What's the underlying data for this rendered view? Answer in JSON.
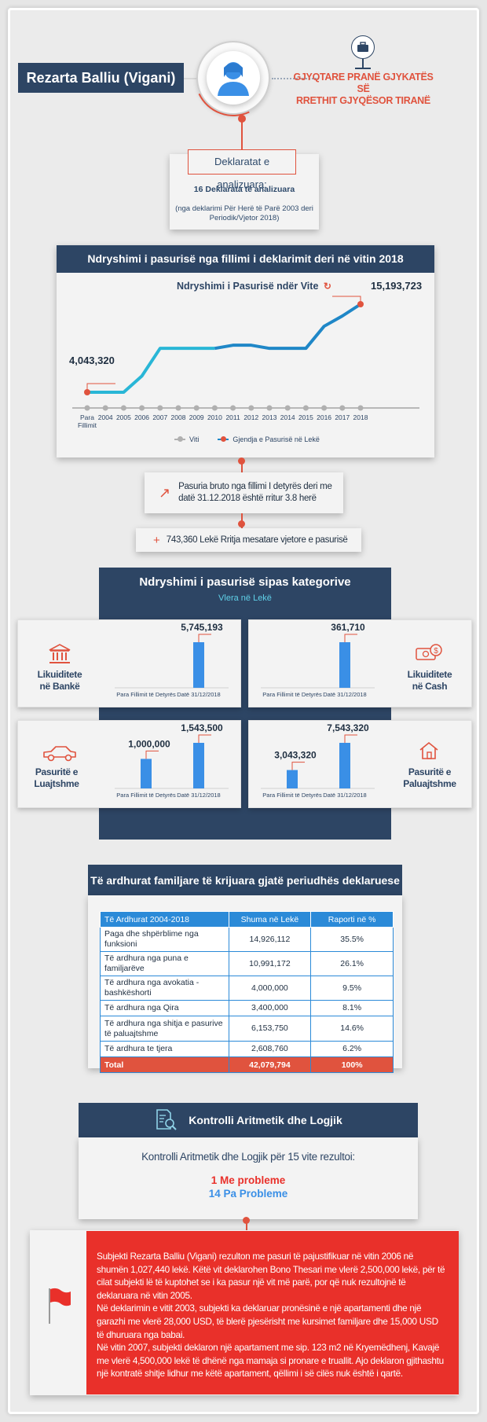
{
  "header": {
    "name": "Rezarta Balliu (Vigani)",
    "role_line1": "GJYQTARE PRANË GJYKATËS SË",
    "role_line2": "RRETHIT GJYQËSOR TIRANË"
  },
  "declarations": {
    "title": "Deklaratat e analizuara:",
    "count": "16 Deklarata të analizuara",
    "note_line1": "(nga deklarimi Për Herë të Parë 2003 deri",
    "note_line2": "Periodik/Vjetor 2018)"
  },
  "wealth_change": {
    "section_title": "Ndryshimi i pasurisë nga fillimi i deklarimit deri në vitin 2018",
    "chart_title": "Ndryshimi i Pasurisë ndër Vite",
    "start_label": "4,043,320",
    "end_label": "15,193,723"
  },
  "chart_data": [
    {
      "type": "line",
      "title": "Ndryshimi i Pasurisë ndër Vite",
      "categories": [
        "Para Fillimit",
        "2004",
        "2005",
        "2006",
        "2007",
        "2008",
        "2009",
        "2010",
        "2011",
        "2012",
        "2013",
        "2014",
        "2015",
        "2016",
        "2017",
        "2018"
      ],
      "series": [
        {
          "name": "Gjendja e Pasurisë në Lekë",
          "values": [
            4043320,
            4043320,
            4043320,
            6100000,
            9600000,
            9600000,
            9600000,
            9600000,
            10000000,
            10000000,
            9600000,
            9600000,
            9600000,
            12400000,
            13700000,
            15193723
          ]
        }
      ],
      "legend": [
        "Viti",
        "Gjendja e Pasurisë në Lekë"
      ],
      "legend_position": "bottom",
      "ylim": [
        0,
        16000000
      ]
    },
    {
      "type": "bar",
      "title": "Likuiditete në Bankë",
      "categories": [
        "Para Fillimit të Detyrës",
        "Datë 31/12/2018"
      ],
      "values": [
        0,
        5745193
      ]
    },
    {
      "type": "bar",
      "title": "Likuiditete në Cash",
      "categories": [
        "Para Fillimit të Detyrës",
        "Datë 31/12/2018"
      ],
      "values": [
        0,
        361710
      ]
    },
    {
      "type": "bar",
      "title": "Pasuritë e Luajtshme",
      "categories": [
        "Para Fillimit të Detyrës",
        "Datë 31/12/2018"
      ],
      "values": [
        1000000,
        1543500
      ]
    },
    {
      "type": "bar",
      "title": "Pasuritë e Paluajtshme",
      "categories": [
        "Para Fillimit të Detyrës",
        "Datë 31/12/2018"
      ],
      "values": [
        3043320,
        7543320
      ]
    }
  ],
  "legend": {
    "viti": "Viti",
    "gjendja": "Gjendja e Pasurisë në Lekë"
  },
  "growth": {
    "line1": "Pasuria bruto nga fillimi I detyrës deri me",
    "line2": "datë 31.12.2018 është rritur 3.8 herë",
    "avg": "743,360 Lekë Rritja mesatare vjetore e pasurisë",
    "plus": "+"
  },
  "categories": {
    "title": "Ndryshimi i pasurisë sipas kategorive",
    "subtitle": "Vlera në Lekë",
    "x_label_before": "Para Fillimit të Detyrës",
    "x_label_after": "Datë 31/12/2018",
    "bank": {
      "line1": "Likuiditete",
      "line2": "në Bankë",
      "before": "",
      "after": "5,745,193"
    },
    "cash": {
      "line1": "Likuiditete",
      "line2": "në Cash",
      "before": "",
      "after": "361,710"
    },
    "movable": {
      "line1": "Pasuritë e",
      "line2": "Luajtshme",
      "before": "1,000,000",
      "after": "1,543,500"
    },
    "immovable": {
      "line1": "Pasuritë e",
      "line2": "Paluajtshme",
      "before": "3,043,320",
      "after": "7,543,320"
    }
  },
  "income": {
    "title": "Të ardhurat familjare të krijuara gjatë periudhës deklaruese",
    "headers": [
      "Të Ardhurat 2004-2018",
      "Shuma në Lekë",
      "Raporti në %"
    ],
    "rows": [
      [
        "Paga dhe shpërblime nga funksioni",
        "14,926,112",
        "35.5%"
      ],
      [
        "Të ardhura nga puna e familjarëve",
        "10,991,172",
        "26.1%"
      ],
      [
        "Të ardhura nga avokatia -bashkëshorti",
        "4,000,000",
        "9.5%"
      ],
      [
        "Të ardhura nga Qira",
        "3,400,000",
        "8.1%"
      ],
      [
        "Të ardhura nga shitja e pasurive të paluajtshme",
        "6,153,750",
        "14.6%"
      ],
      [
        "Të ardhura te tjera",
        "2,608,760",
        "6.2%"
      ]
    ],
    "total": [
      "Total",
      "42,079,794",
      "100%"
    ]
  },
  "control": {
    "title": "Kontrolli Aritmetik dhe Logjik",
    "subtitle": "Kontrolli Aritmetik dhe Logjik për 15 vite rezultoi:",
    "problems": "1 Me probleme",
    "no_problems": "14 Pa Probleme"
  },
  "finding": {
    "p1": "Subjekti Rezarta Balliu (Vigani) rezulton me pasuri të pajustifikuar në vitin 2006 në shumën 1,027,440 lekë. Këtë vit deklarohen Bono Thesari me vlerë 2,500,000 lekë, për të cilat subjekti lë të kuptohet se i ka pasur një vit më parë, por që nuk rezultojnë të deklaruara në vitin 2005.",
    "p2": "Në deklarimin e vitit 2003, subjekti ka deklaruar pronësinë e një apartamenti dhe një garazhi me vlerë 28,000 USD, të blerë pjesërisht me kursimet familjare dhe 15,000 USD të dhuruara nga babai.",
    "p3": "Në vitin 2007, subjekti deklaron një apartament me sip. 123 m2 në Kryemëdhenj, Kavajë me vlerë 4,500,000 lekë të dhënë nga mamaja si pronare e truallit. Ajo deklaron gjithashtu një kontratë shitje lidhur me këtë apartament, qëllimi i së cilës nuk është i qartë."
  },
  "colors": {
    "navy": "#2d4564",
    "accent": "#e0533e",
    "blue": "#3a8fe6",
    "teal": "#29b6d6",
    "red": "#e9302a"
  }
}
